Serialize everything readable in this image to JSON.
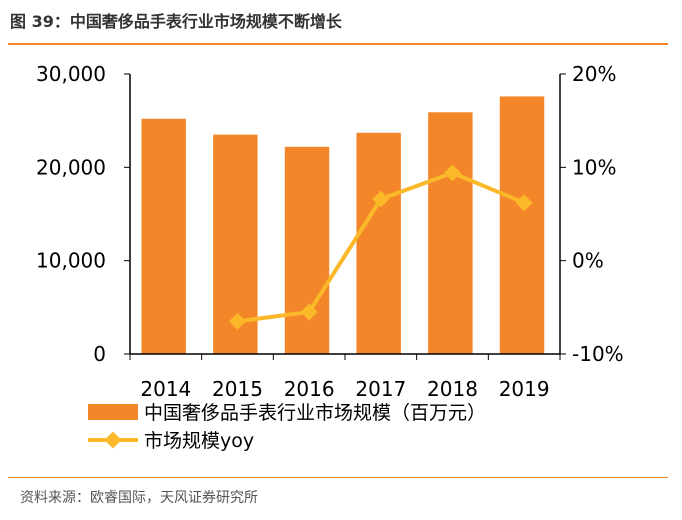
{
  "title": "图 39：中国奢侈品手表行业市场规模不断增长",
  "source": "资料来源：欧睿国际，天风证券研究所",
  "chart_data": {
    "type": "bar+line",
    "categories": [
      "2014",
      "2015",
      "2016",
      "2017",
      "2018",
      "2019"
    ],
    "series": [
      {
        "name": "中国奢侈品手表行业市场规模（百万元）",
        "type": "bar",
        "axis": "left",
        "color": "#f4862a",
        "values": [
          25200,
          23500,
          22200,
          23700,
          25900,
          27600
        ]
      },
      {
        "name": "市场规模yoy",
        "type": "line",
        "axis": "right",
        "color": "#fbb829",
        "marker": "diamond",
        "values": [
          null,
          -6.5,
          -5.5,
          6.6,
          9.4,
          6.2
        ]
      }
    ],
    "left_axis": {
      "ylim": [
        0,
        30000
      ],
      "ticks": [
        "0",
        "10,000",
        "20,000",
        "30,000"
      ]
    },
    "right_axis": {
      "ylim": [
        -10,
        20
      ],
      "unit": "%",
      "ticks": [
        "-10%",
        "0%",
        "10%",
        "20%"
      ]
    },
    "grid": false,
    "legend": "bottom"
  }
}
